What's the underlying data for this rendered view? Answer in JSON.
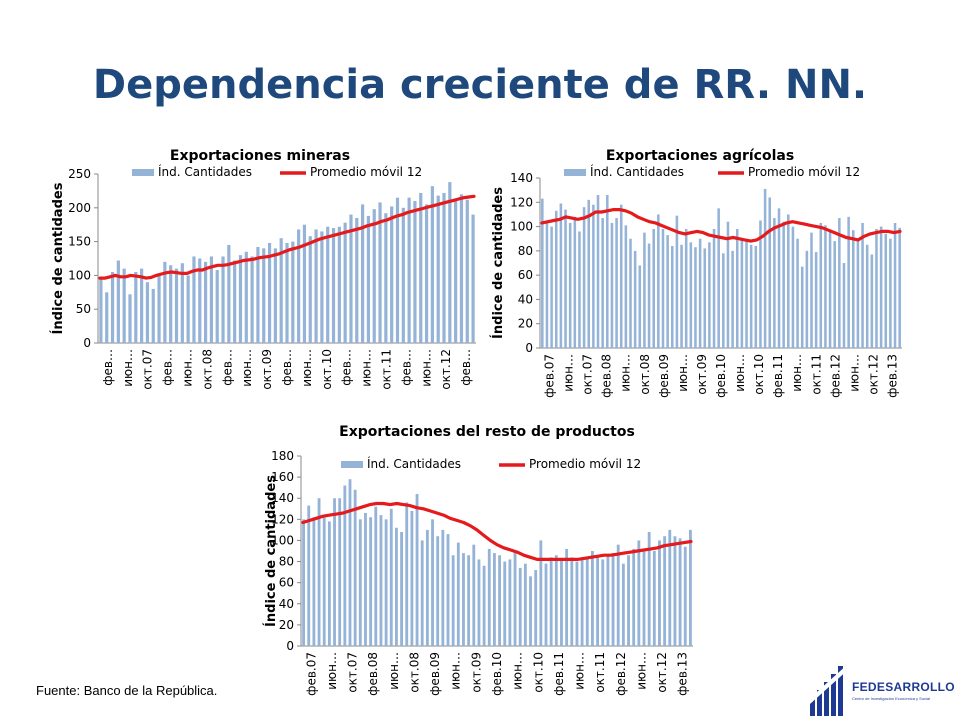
{
  "page": {
    "title": "Dependencia creciente de RR. NN.",
    "source": "Fuente: Banco de la República.",
    "logo": {
      "name": "FEDESARROLLO",
      "subtitle": "Centro de Investigación Económica y Social"
    },
    "colors": {
      "title": "#1f497d",
      "bars": "#95b3d7",
      "line": "#e41a1c",
      "logo": "#1f3a93"
    }
  },
  "chart_data": [
    {
      "type": "bar",
      "title": "Exportaciones mineras",
      "ylabel": "Índice de cantidades",
      "xlabel": "",
      "ylim": [
        0,
        250
      ],
      "yticks": [
        0,
        50,
        100,
        150,
        200,
        250
      ],
      "legend": [
        "Índ. Cantidades",
        "Promedio móvil 12"
      ],
      "legend_position": "top",
      "xtick_labels": [
        "фев…",
        "июн…",
        "окт.07",
        "фев…",
        "июн…",
        "окт.08",
        "фев…",
        "июн…",
        "окт.09",
        "фев…",
        "июн…",
        "окт.10",
        "фев…",
        "июн…",
        "окт.11",
        "фев…",
        "июн…",
        "окт.12",
        "фев…"
      ],
      "series": [
        {
          "name": "Índ. Cantidades",
          "kind": "bar",
          "values": [
            95,
            75,
            105,
            122,
            110,
            72,
            105,
            110,
            90,
            80,
            100,
            120,
            115,
            110,
            118,
            100,
            128,
            125,
            120,
            128,
            108,
            128,
            145,
            122,
            130,
            135,
            128,
            142,
            140,
            148,
            140,
            155,
            148,
            150,
            168,
            175,
            158,
            168,
            165,
            172,
            170,
            172,
            178,
            190,
            185,
            205,
            188,
            198,
            208,
            192,
            202,
            215,
            200,
            215,
            210,
            222,
            205,
            232,
            218,
            222,
            238,
            210,
            220,
            212,
            190
          ]
        },
        {
          "name": "Promedio móvil 12",
          "kind": "line",
          "values": [
            96,
            96,
            98,
            100,
            98,
            98,
            100,
            99,
            98,
            96,
            97,
            100,
            102,
            104,
            105,
            104,
            103,
            103,
            106,
            108,
            108,
            111,
            113,
            115,
            115,
            116,
            118,
            120,
            122,
            123,
            124,
            126,
            127,
            128,
            130,
            132,
            135,
            138,
            140,
            142,
            145,
            148,
            151,
            154,
            156,
            158,
            160,
            162,
            164,
            166,
            168,
            170,
            173,
            175,
            177,
            180,
            182,
            185,
            188,
            190,
            193,
            195,
            197,
            199,
            201,
            203,
            205,
            207,
            209,
            211,
            213,
            215,
            216,
            217
          ]
        }
      ]
    },
    {
      "type": "bar",
      "title": "Exportaciones agrícolas",
      "ylabel": "Índice de cantidades",
      "xlabel": "",
      "ylim": [
        0,
        140
      ],
      "yticks": [
        0,
        20,
        40,
        60,
        80,
        100,
        120,
        140
      ],
      "legend": [
        "Índ. Cantidades",
        "Promedio móvil 12"
      ],
      "legend_position": "top",
      "xtick_labels": [
        "фев.07",
        "июн…",
        "окт.07",
        "фев.08",
        "июн…",
        "окт.08",
        "фев.09",
        "июн…",
        "окт.09",
        "фев.10",
        "июн…",
        "окт.10",
        "фев.11",
        "июн…",
        "окт.11",
        "фев.12",
        "июн…",
        "окт.12",
        "фев.13"
      ],
      "series": [
        {
          "name": "Índ. Cantidades",
          "kind": "bar",
          "values": [
            123,
            104,
            100,
            113,
            119,
            114,
            103,
            108,
            96,
            116,
            122,
            118,
            126,
            107,
            126,
            103,
            107,
            118,
            101,
            90,
            80,
            68,
            95,
            86,
            98,
            110,
            98,
            93,
            84,
            109,
            85,
            98,
            87,
            83,
            90,
            82,
            87,
            98,
            115,
            78,
            104,
            80,
            98,
            90,
            88,
            85,
            84,
            105,
            131,
            124,
            107,
            115,
            104,
            110,
            100,
            90,
            67,
            80,
            95,
            79,
            103,
            101,
            97,
            88,
            107,
            70,
            108,
            97,
            90,
            103,
            85,
            77,
            98,
            100,
            94,
            90,
            103,
            99
          ]
        },
        {
          "name": "Promedio móvil 12",
          "kind": "line",
          "values": [
            103,
            104,
            105,
            106,
            108,
            107,
            106,
            107,
            109,
            112,
            112,
            113,
            114,
            114,
            113,
            111,
            108,
            106,
            104,
            103,
            101,
            99,
            97,
            95,
            94,
            95,
            96,
            95,
            93,
            92,
            91,
            90,
            91,
            90,
            89,
            88,
            89,
            92,
            96,
            99,
            101,
            103,
            104,
            103,
            102,
            101,
            100,
            99,
            97,
            95,
            93,
            91,
            90,
            89,
            92,
            94,
            95,
            96,
            96,
            95,
            96
          ]
        }
      ]
    },
    {
      "type": "bar",
      "title": "Exportaciones del resto de productos",
      "ylabel": "Índice de cantidades",
      "xlabel": "",
      "ylim": [
        0,
        180
      ],
      "yticks": [
        0,
        20,
        40,
        60,
        80,
        100,
        120,
        140,
        160,
        180
      ],
      "legend": [
        "Índ. Cantidades",
        "Promedio móvil 12"
      ],
      "legend_position": "top",
      "xtick_labels": [
        "фев.07",
        "июн…",
        "окт.07",
        "фев.08",
        "июн…",
        "окт.08",
        "фев.09",
        "июн…",
        "окт.09",
        "фев.10",
        "июн…",
        "окт.10",
        "фев.11",
        "июн…",
        "окт.11",
        "фев.12",
        "июн…",
        "окт.12",
        "фев.13"
      ],
      "series": [
        {
          "name": "Índ. Cantidades",
          "kind": "bar",
          "values": [
            120,
            133,
            122,
            140,
            124,
            118,
            140,
            140,
            152,
            158,
            148,
            120,
            126,
            122,
            132,
            124,
            120,
            130,
            112,
            108,
            136,
            128,
            144,
            100,
            110,
            120,
            104,
            110,
            106,
            86,
            98,
            88,
            86,
            96,
            82,
            76,
            92,
            88,
            86,
            80,
            82,
            90,
            74,
            78,
            66,
            72,
            100,
            78,
            84,
            86,
            82,
            92,
            84,
            80,
            84,
            84,
            90,
            86,
            82,
            86,
            88,
            96,
            78,
            86,
            92,
            100,
            92,
            108,
            90,
            100,
            104,
            110,
            104,
            102,
            94,
            110
          ]
        },
        {
          "name": "Promedio móvil 12",
          "kind": "line",
          "values": [
            117,
            119,
            121,
            123,
            124,
            125,
            126,
            128,
            130,
            132,
            134,
            135,
            135,
            134,
            135,
            134,
            133,
            131,
            130,
            128,
            126,
            124,
            121,
            119,
            117,
            114,
            110,
            105,
            100,
            96,
            93,
            91,
            89,
            86,
            84,
            82,
            82,
            82,
            82,
            82,
            82,
            82,
            83,
            84,
            85,
            86,
            86,
            87,
            88,
            89,
            90,
            91,
            92,
            93,
            95,
            96,
            97,
            98,
            99
          ]
        }
      ]
    }
  ]
}
